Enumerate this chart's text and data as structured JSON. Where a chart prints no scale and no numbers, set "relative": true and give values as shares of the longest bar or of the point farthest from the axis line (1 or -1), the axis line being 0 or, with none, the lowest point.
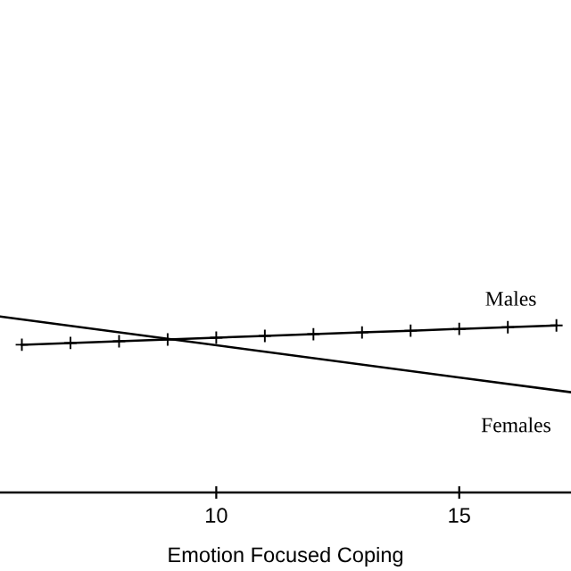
{
  "chart_data": {
    "type": "line",
    "xlabel": "Emotion Focused Coping",
    "relative": true,
    "xlim": [
      5.55,
      17.3
    ],
    "xticks": [
      10,
      15
    ],
    "tick_labels": "x",
    "grid": false,
    "legend": false,
    "series": [
      {
        "name": "Males",
        "color": "#000000",
        "marker": "cross",
        "x": [
          6,
          7,
          8,
          9,
          10,
          11,
          12,
          13,
          14,
          15,
          16,
          17
        ],
        "values": [
          0.84,
          0.85,
          0.86,
          0.87,
          0.88,
          0.89,
          0.9,
          0.91,
          0.92,
          0.93,
          0.94,
          0.95
        ]
      },
      {
        "name": "Females",
        "color": "#000000",
        "marker": "none",
        "x": [
          5.55,
          17.3
        ],
        "values": [
          1.0,
          0.57
        ]
      }
    ]
  }
}
